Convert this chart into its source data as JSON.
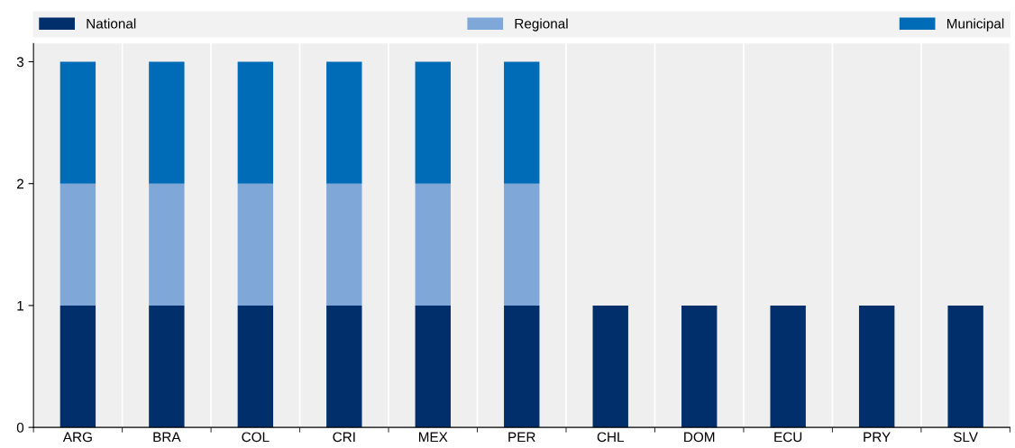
{
  "chart_data": {
    "type": "bar",
    "stacked": true,
    "categories": [
      "ARG",
      "BRA",
      "COL",
      "CRI",
      "MEX",
      "PER",
      "CHL",
      "DOM",
      "ECU",
      "PRY",
      "SLV"
    ],
    "series": [
      {
        "name": "National",
        "color": "#002f6c",
        "values": [
          1,
          1,
          1,
          1,
          1,
          1,
          1,
          1,
          1,
          1,
          1
        ]
      },
      {
        "name": "Regional",
        "color": "#7fa8d9",
        "values": [
          1,
          1,
          1,
          1,
          1,
          1,
          0,
          0,
          0,
          0,
          0
        ]
      },
      {
        "name": "Municipal",
        "color": "#006bb6",
        "values": [
          1,
          1,
          1,
          1,
          1,
          1,
          0,
          0,
          0,
          0,
          0
        ]
      }
    ],
    "ylim": [
      0,
      3.15
    ],
    "yticks": [
      0,
      1,
      2,
      3
    ],
    "grid": "x",
    "legend": "top"
  }
}
